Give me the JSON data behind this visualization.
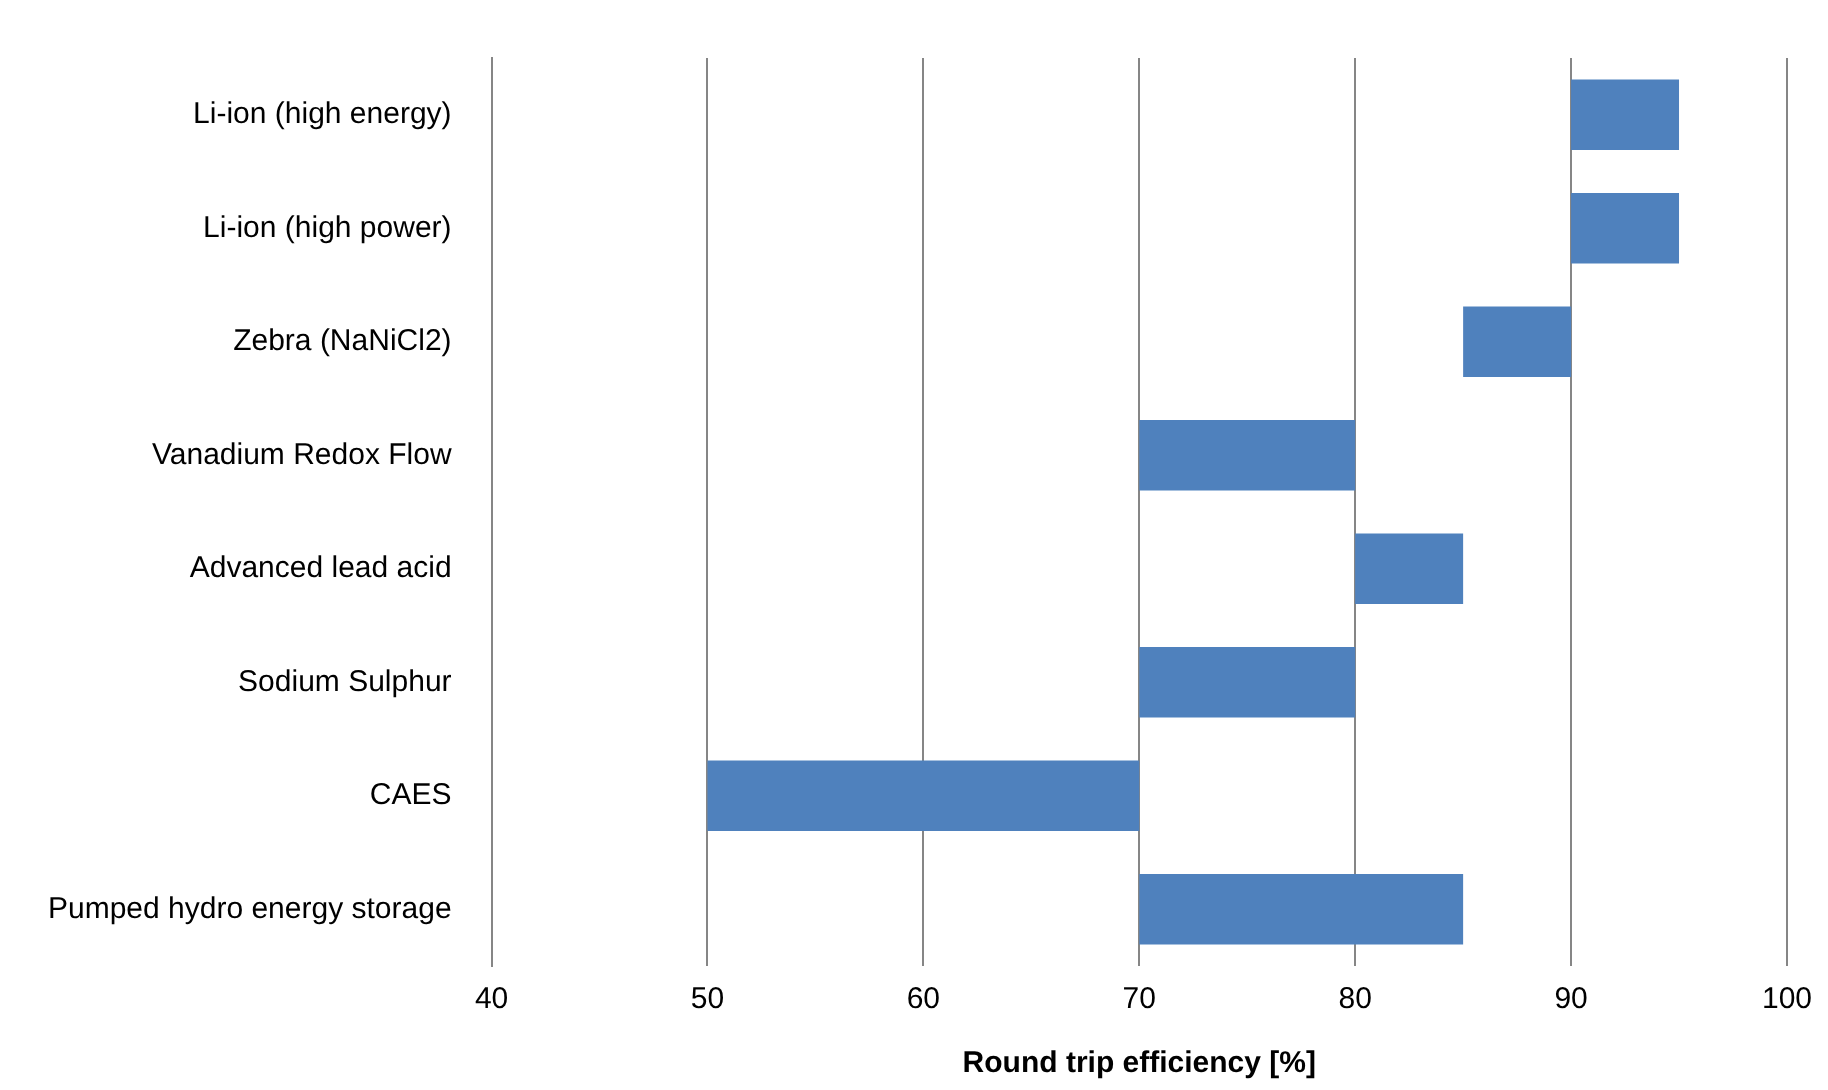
{
  "chart_data": {
    "type": "bar",
    "orientation": "horizontal",
    "xlabel": "Round trip efficiency [%]",
    "categories": [
      "Li-ion (high energy)",
      "Li-ion (high power)",
      "Zebra (NaNiCl2)",
      "Vanadium Redox Flow",
      "Advanced lead acid",
      "Sodium Sulphur",
      "CAES",
      "Pumped hydro energy storage"
    ],
    "base": [
      90,
      90,
      85,
      70,
      80,
      70,
      50,
      70
    ],
    "values": [
      5,
      5,
      5,
      10,
      5,
      10,
      20,
      15
    ],
    "color": "#4f81bd",
    "xlim": [
      40,
      100
    ],
    "xticks": [
      40,
      50,
      60,
      70,
      80,
      90,
      100
    ],
    "grid": "x",
    "legend": false
  }
}
